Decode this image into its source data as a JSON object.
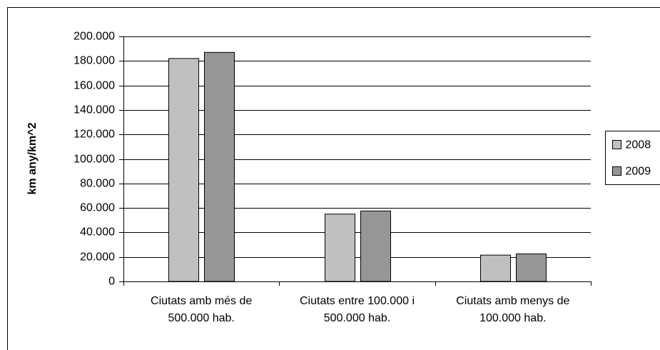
{
  "chart_data": {
    "type": "bar",
    "y_label": "km any/km^2",
    "categories": [
      "Ciutats amb més de 500.000 hab.",
      "Ciutats entre 100.000 i 500.000 hab.",
      "Ciutats amb menys de 100.000 hab."
    ],
    "series": [
      {
        "name": "2008",
        "color": "#c0c0c0",
        "values": [
          182000,
          55000,
          21500
        ]
      },
      {
        "name": "2009",
        "color": "#969696",
        "values": [
          187000,
          57500,
          22500
        ]
      }
    ],
    "ylim": [
      0,
      200000
    ],
    "yticks": [
      0,
      {
        "value": 20000,
        "label": "20.000"
      },
      {
        "value": 40000,
        "label": "40.000"
      },
      {
        "value": 60000,
        "label": "60.000"
      },
      {
        "value": 80000,
        "label": "80.000"
      },
      {
        "value": 100000,
        "label": "100.000"
      },
      {
        "value": 120000,
        "label": "120.000"
      },
      {
        "value": 140000,
        "label": "140.000"
      },
      {
        "value": 160000,
        "label": "160.000"
      },
      {
        "value": 180000,
        "label": "180.000"
      },
      {
        "value": 200000,
        "label": "200.000"
      }
    ],
    "grid": true,
    "legend": "right"
  }
}
